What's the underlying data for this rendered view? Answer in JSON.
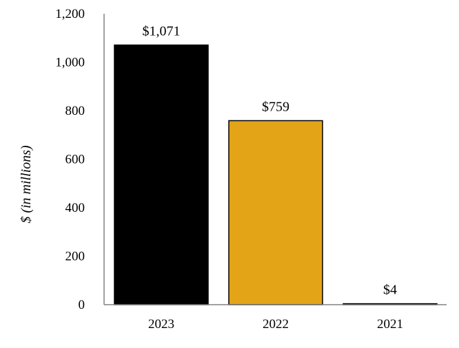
{
  "chart_data": {
    "type": "bar",
    "title": "",
    "xlabel": "",
    "ylabel": "$ (in millions)",
    "ylim": [
      0,
      1200
    ],
    "yticks": [
      0,
      200,
      400,
      600,
      800,
      1000,
      1200
    ],
    "ytick_labels": [
      "0",
      "200",
      "400",
      "600",
      "800",
      "1,000",
      "1,200"
    ],
    "grid": false,
    "legend": "none",
    "categories": [
      "2023",
      "2022",
      "2021"
    ],
    "values": [
      1071,
      759,
      4
    ],
    "data_labels": [
      "$1,071",
      "$759",
      "$4"
    ],
    "colors": [
      "#000000",
      "#e3a418",
      "#000000"
    ],
    "bar_edge_color": "#000000",
    "axis_color": "#808080"
  }
}
